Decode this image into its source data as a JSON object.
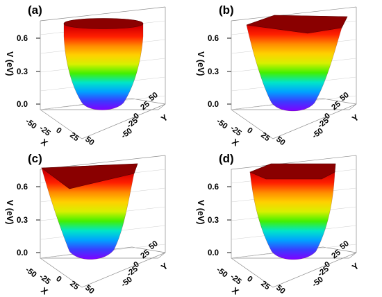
{
  "colors": {
    "colormap": [
      "#7f00ff",
      "#3a3cff",
      "#00a2ff",
      "#00e6c8",
      "#43f000",
      "#d8f000",
      "#ffd000",
      "#ff8a00",
      "#ff2000",
      "#d80000",
      "#a00000"
    ],
    "rim": "#8a0000",
    "frame": "#8c8c8c"
  },
  "chart_data": [
    {
      "panel": "(a)",
      "type": "surface3d",
      "shape": "circular",
      "xlabel": "X",
      "ylabel": "Y",
      "zlabel": "V (eV)",
      "xticks": [
        "-50",
        "-25",
        "0",
        "25",
        "50"
      ],
      "yticks": [
        "-50",
        "-25",
        "0",
        "25",
        "50"
      ],
      "zticks": [
        "0.0",
        "0.3",
        "0.6"
      ],
      "xlim": [
        -50,
        50
      ],
      "ylim": [
        -50,
        50
      ],
      "zlim": [
        0.0,
        0.7
      ],
      "zmin": 0.0,
      "zmax": 0.7,
      "grid": true
    },
    {
      "panel": "(b)",
      "type": "surface3d",
      "shape": "square",
      "xlabel": "X",
      "ylabel": "Y",
      "zlabel": "V (eV)",
      "xticks": [
        "-50",
        "-25",
        "0",
        "25",
        "50"
      ],
      "yticks": [
        "-50",
        "-25",
        "0",
        "25",
        "50"
      ],
      "zticks": [
        "0.0",
        "0.3",
        "0.6"
      ],
      "xlim": [
        -50,
        50
      ],
      "ylim": [
        -50,
        50
      ],
      "zlim": [
        0.0,
        0.7
      ],
      "zmin": 0.0,
      "zmax": 0.7,
      "grid": true
    },
    {
      "panel": "(c)",
      "type": "surface3d",
      "shape": "triangular",
      "xlabel": "X",
      "ylabel": "Y",
      "zlabel": "V (eV)",
      "xticks": [
        "-50",
        "-25",
        "0",
        "25",
        "50"
      ],
      "yticks": [
        "-50",
        "-25",
        "0",
        "25",
        "50"
      ],
      "zticks": [
        "0.0",
        "0.3",
        "0.6"
      ],
      "xlim": [
        -50,
        50
      ],
      "ylim": [
        -50,
        50
      ],
      "zlim": [
        0.0,
        0.7
      ],
      "zmin": 0.0,
      "zmax": 0.7,
      "grid": true
    },
    {
      "panel": "(d)",
      "type": "surface3d",
      "shape": "hexagonal",
      "xlabel": "X",
      "ylabel": "Y",
      "zlabel": "V (eV)",
      "xticks": [
        "-50",
        "-25",
        "0",
        "25",
        "50"
      ],
      "yticks": [
        "-50",
        "-25",
        "0",
        "25",
        "50"
      ],
      "zticks": [
        "0.0",
        "0.3",
        "0.6"
      ],
      "xlim": [
        -50,
        50
      ],
      "ylim": [
        -50,
        50
      ],
      "zlim": [
        0.0,
        0.7
      ],
      "zmin": 0.0,
      "zmax": 0.7,
      "grid": true
    }
  ]
}
